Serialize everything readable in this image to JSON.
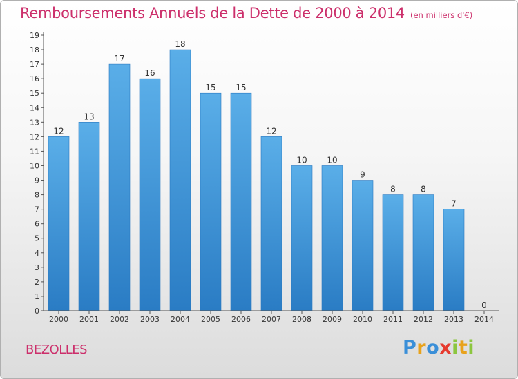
{
  "chart_data": {
    "type": "bar",
    "title": "Remboursements Annuels de la Dette de 2000 à 2014",
    "subtitle": "(en milliers d'€)",
    "categories": [
      "2000",
      "2001",
      "2002",
      "2003",
      "2004",
      "2005",
      "2006",
      "2007",
      "2008",
      "2009",
      "2010",
      "2011",
      "2012",
      "2013",
      "2014"
    ],
    "values": [
      12,
      13,
      17,
      16,
      18,
      15,
      15,
      12,
      10,
      10,
      9,
      8,
      8,
      7,
      0
    ],
    "xlabel": "",
    "ylabel": "",
    "ylim": [
      0,
      19
    ],
    "yticks": [
      0,
      1,
      2,
      3,
      4,
      5,
      6,
      7,
      8,
      9,
      10,
      11,
      12,
      13,
      14,
      15,
      16,
      17,
      18,
      19
    ],
    "grid": false,
    "bar_color": "#4a9fe0",
    "bar_color_dark": "#2c7cc6"
  },
  "commune": "BEZOLLES",
  "logo": {
    "text": "Proxiti",
    "letters": [
      "P",
      "r",
      "o",
      "x",
      "i",
      "t",
      "i"
    ],
    "colors": [
      "#3a8fd8",
      "#e8a21c",
      "#3a8fd8",
      "#e63a2e",
      "#8cc63f",
      "#e8a21c",
      "#8cc63f"
    ]
  },
  "colors": {
    "accent": "#cc2f6b",
    "axis": "#333333"
  }
}
